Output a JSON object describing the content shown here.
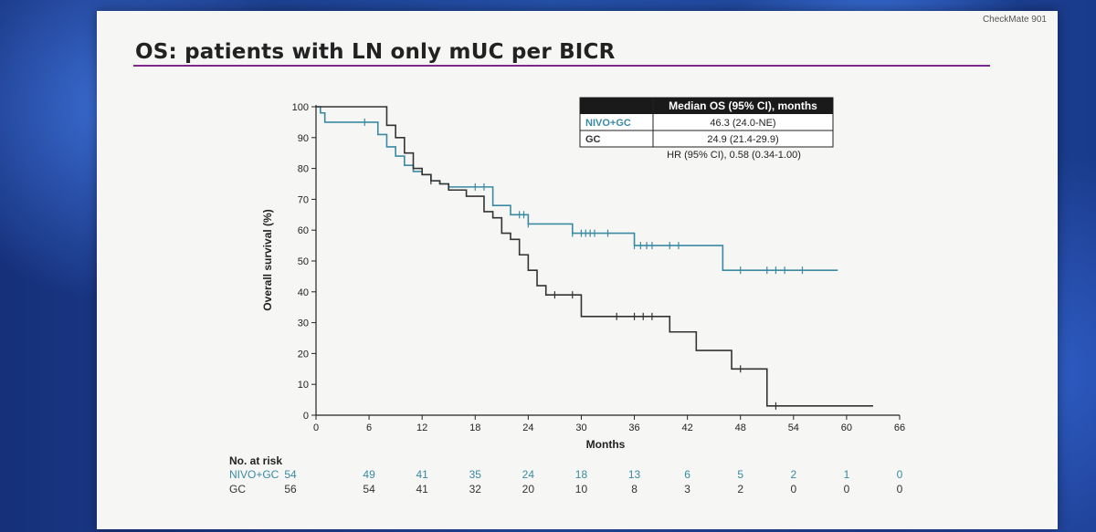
{
  "slide": {
    "brand": "CheckMate 901",
    "title": "OS: patients with LN only mUC per BICR"
  },
  "colors": {
    "nivo": "#3a8aa2",
    "gc": "#333333",
    "accent": "#7b2a8c"
  },
  "chart_data": {
    "type": "line",
    "xlabel": "Months",
    "ylabel": "Overall survival (%)",
    "xlim": [
      0,
      66
    ],
    "ylim": [
      0,
      100
    ],
    "xticks": [
      0,
      6,
      12,
      18,
      24,
      30,
      36,
      42,
      48,
      54,
      60,
      66
    ],
    "yticks": [
      0,
      10,
      20,
      30,
      40,
      50,
      60,
      70,
      80,
      90,
      100
    ],
    "grid": false,
    "series": [
      {
        "name": "NIVO+GC",
        "color": "#3a8aa2",
        "x": [
          0,
          0.5,
          1,
          6,
          7,
          8,
          9,
          10,
          11,
          12,
          13,
          14,
          15,
          16,
          20,
          21,
          22,
          23,
          24,
          26,
          28,
          29,
          36,
          46,
          59
        ],
        "y": [
          100,
          98,
          95,
          95,
          91,
          87,
          84,
          81,
          79,
          78,
          76,
          75,
          74,
          74,
          68,
          68,
          65,
          65,
          62,
          62,
          62,
          59,
          55,
          47,
          47
        ],
        "censors_x": [
          5.5,
          18,
          19,
          23,
          23.5,
          24,
          29,
          30,
          30.5,
          31,
          31.5,
          33,
          36,
          36.7,
          37.4,
          38,
          40,
          41,
          48,
          51,
          52,
          53,
          55
        ]
      },
      {
        "name": "GC",
        "color": "#333333",
        "x": [
          0,
          0.5,
          7,
          8,
          9,
          10,
          11,
          12,
          13,
          14,
          15,
          17,
          19,
          20,
          21,
          22,
          23,
          24,
          25,
          26,
          28,
          30,
          35,
          40,
          43,
          45,
          47,
          51,
          63
        ],
        "y": [
          100,
          100,
          100,
          94,
          90,
          85,
          80,
          78,
          76,
          75,
          73,
          71,
          66,
          64,
          59,
          57,
          52,
          47,
          42,
          39,
          39,
          32,
          32,
          27,
          21,
          21,
          15,
          3,
          3
        ],
        "censors_x": [
          13,
          27,
          29,
          34,
          36,
          37,
          38,
          48,
          52
        ]
      }
    ],
    "table": {
      "header": "Median OS (95% CI), months",
      "rows": [
        {
          "label": "NIVO+GC",
          "value": "46.3 (24.0-NE)"
        },
        {
          "label": "GC",
          "value": "24.9 (21.4-29.9)"
        }
      ],
      "hr": "HR (95% CI), 0.58 (0.34-1.00)"
    },
    "risk_table": {
      "title": "No. at risk",
      "rows": [
        {
          "label": "NIVO+GC",
          "values": [
            54,
            49,
            41,
            35,
            24,
            18,
            13,
            6,
            5,
            2,
            1,
            0
          ]
        },
        {
          "label": "GC",
          "values": [
            56,
            54,
            41,
            32,
            20,
            10,
            8,
            3,
            2,
            0,
            0,
            0
          ]
        }
      ]
    }
  }
}
